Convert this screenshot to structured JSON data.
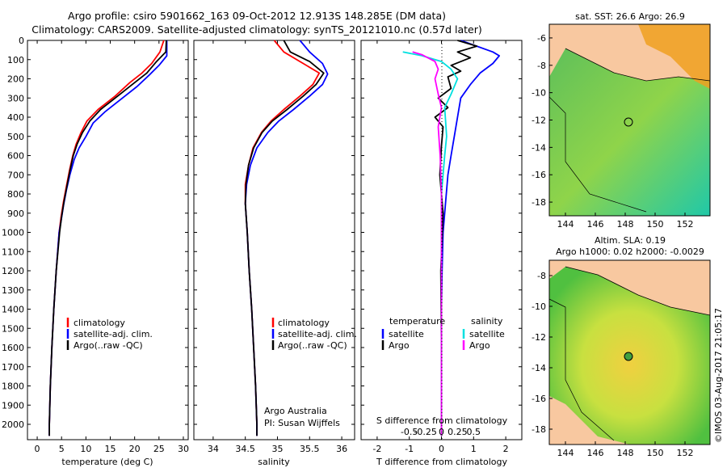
{
  "title": {
    "line1": "Argo profile: csiro 5901662_163 09-Oct-2012 12.913S 148.285E (DM data)",
    "line2": "Climatology: CARS2009. Satellite-adjusted climatology: synTS_20121010.nc (0.57d later)"
  },
  "colors": {
    "clim": "#ff0000",
    "sat": "#0000ff",
    "argo": "#000000",
    "sat_s": "#00e0e0",
    "argo_s": "#ff00ff"
  },
  "chart_data": [
    {
      "type": "line",
      "id": "temperature",
      "xlabel": "temperature (deg C)",
      "ylabel": "",
      "xlim": [
        -2,
        31
      ],
      "ylim": [
        2080,
        0
      ],
      "xticks": [
        0,
        5,
        10,
        15,
        20,
        25,
        30
      ],
      "yticks": [
        0,
        100,
        200,
        300,
        400,
        500,
        600,
        700,
        800,
        900,
        1000,
        1100,
        1200,
        1300,
        1400,
        1500,
        1600,
        1700,
        1800,
        1900,
        2000
      ],
      "legend": [
        "climatology",
        "satellite-adj. clim.",
        "Argo(..raw -QC)"
      ],
      "series": [
        {
          "name": "climatology",
          "color": "clim",
          "points": [
            [
              26.0,
              0
            ],
            [
              25.2,
              60
            ],
            [
              23.5,
              120
            ],
            [
              21.5,
              170
            ],
            [
              19.0,
              220
            ],
            [
              16.0,
              290
            ],
            [
              12.5,
              360
            ],
            [
              10.2,
              420
            ],
            [
              9.0,
              480
            ],
            [
              8.0,
              540
            ],
            [
              7.3,
              600
            ],
            [
              6.6,
              680
            ],
            [
              6.0,
              760
            ],
            [
              5.4,
              840
            ],
            [
              4.9,
              920
            ],
            [
              4.5,
              1000
            ],
            [
              3.9,
              1200
            ],
            [
              3.4,
              1400
            ],
            [
              3.0,
              1600
            ],
            [
              2.7,
              1800
            ],
            [
              2.5,
              2000
            ],
            [
              2.5,
              2060
            ]
          ]
        },
        {
          "name": "satellite-adj. clim.",
          "color": "sat",
          "points": [
            [
              26.6,
              0
            ],
            [
              26.6,
              80
            ],
            [
              25.0,
              130
            ],
            [
              23.0,
              180
            ],
            [
              20.5,
              240
            ],
            [
              17.5,
              300
            ],
            [
              14.0,
              370
            ],
            [
              11.5,
              430
            ],
            [
              10.0,
              500
            ],
            [
              8.6,
              560
            ],
            [
              7.6,
              620
            ],
            [
              6.7,
              700
            ],
            [
              6.0,
              780
            ],
            [
              5.4,
              860
            ],
            [
              4.9,
              940
            ],
            [
              4.5,
              1000
            ],
            [
              3.9,
              1200
            ],
            [
              3.4,
              1400
            ],
            [
              3.0,
              1600
            ],
            [
              2.7,
              1800
            ],
            [
              2.5,
              2000
            ],
            [
              2.5,
              2060
            ]
          ]
        },
        {
          "name": "Argo(..raw -QC)",
          "color": "argo",
          "points": [
            [
              26.5,
              0
            ],
            [
              26.4,
              60
            ],
            [
              24.5,
              110
            ],
            [
              22.5,
              170
            ],
            [
              19.5,
              230
            ],
            [
              16.5,
              290
            ],
            [
              13.0,
              360
            ],
            [
              10.8,
              420
            ],
            [
              9.3,
              480
            ],
            [
              8.2,
              540
            ],
            [
              7.4,
              600
            ],
            [
              6.7,
              680
            ],
            [
              6.1,
              760
            ],
            [
              5.5,
              840
            ],
            [
              5.0,
              920
            ],
            [
              4.6,
              1000
            ],
            [
              3.9,
              1200
            ],
            [
              3.4,
              1400
            ],
            [
              3.0,
              1600
            ],
            [
              2.7,
              1800
            ],
            [
              2.5,
              2000
            ],
            [
              2.5,
              2060
            ]
          ]
        }
      ]
    },
    {
      "type": "line",
      "id": "salinity",
      "xlabel": "salinity",
      "xlim": [
        33.7,
        36.2
      ],
      "ylim": [
        2080,
        0
      ],
      "xticks": [
        34,
        34.5,
        35,
        35.5,
        36
      ],
      "legend": [
        "climatology",
        "satellite-adj. clim.",
        "Argo(..raw -QC)"
      ],
      "annotations": [
        "Argo Australia",
        "PI: Susan Wijffels"
      ],
      "series": [
        {
          "name": "climatology",
          "color": "clim",
          "points": [
            [
              34.95,
              0
            ],
            [
              35.1,
              60
            ],
            [
              35.4,
              120
            ],
            [
              35.65,
              170
            ],
            [
              35.55,
              230
            ],
            [
              35.35,
              290
            ],
            [
              35.1,
              360
            ],
            [
              34.9,
              420
            ],
            [
              34.75,
              480
            ],
            [
              34.62,
              560
            ],
            [
              34.55,
              650
            ],
            [
              34.5,
              750
            ],
            [
              34.5,
              850
            ],
            [
              34.53,
              1000
            ],
            [
              34.56,
              1200
            ],
            [
              34.6,
              1400
            ],
            [
              34.63,
              1600
            ],
            [
              34.66,
              1800
            ],
            [
              34.68,
              2000
            ],
            [
              34.68,
              2060
            ]
          ]
        },
        {
          "name": "satellite-adj. clim.",
          "color": "sat",
          "points": [
            [
              35.35,
              0
            ],
            [
              35.5,
              60
            ],
            [
              35.7,
              120
            ],
            [
              35.78,
              175
            ],
            [
              35.7,
              230
            ],
            [
              35.5,
              290
            ],
            [
              35.25,
              360
            ],
            [
              35.02,
              420
            ],
            [
              34.85,
              480
            ],
            [
              34.68,
              560
            ],
            [
              34.58,
              650
            ],
            [
              34.52,
              750
            ],
            [
              34.5,
              850
            ],
            [
              34.53,
              1000
            ],
            [
              34.56,
              1200
            ],
            [
              34.6,
              1400
            ],
            [
              34.63,
              1600
            ],
            [
              34.66,
              1800
            ],
            [
              34.68,
              2000
            ],
            [
              34.68,
              2060
            ]
          ]
        },
        {
          "name": "Argo(..raw -QC)",
          "color": "argo",
          "points": [
            [
              35.1,
              0
            ],
            [
              35.2,
              60
            ],
            [
              35.5,
              110
            ],
            [
              35.72,
              170
            ],
            [
              35.6,
              230
            ],
            [
              35.4,
              290
            ],
            [
              35.15,
              360
            ],
            [
              34.92,
              420
            ],
            [
              34.76,
              480
            ],
            [
              34.63,
              560
            ],
            [
              34.55,
              650
            ],
            [
              34.51,
              750
            ],
            [
              34.5,
              850
            ],
            [
              34.53,
              1000
            ],
            [
              34.56,
              1200
            ],
            [
              34.6,
              1400
            ],
            [
              34.63,
              1600
            ],
            [
              34.66,
              1800
            ],
            [
              34.68,
              2000
            ],
            [
              34.68,
              2060
            ]
          ]
        }
      ]
    },
    {
      "type": "line",
      "id": "difference",
      "xlabel": "T difference from climatology",
      "xlabel_top": "S difference from climatology",
      "xlim": [
        -2.5,
        2.5
      ],
      "ylim": [
        2080,
        0
      ],
      "xticks": [
        -2,
        -1,
        0,
        1,
        2
      ],
      "sticks": [
        -0.5,
        -0.25,
        0,
        0.25,
        0.5
      ],
      "legend_headers": [
        "temperature",
        "salinity"
      ],
      "legend_t": [
        "satellite",
        "Argo"
      ],
      "legend_s": [
        "satellite",
        "Argo"
      ],
      "series": [
        {
          "name": "T satellite",
          "color": "sat",
          "points": [
            [
              0.6,
              0
            ],
            [
              1.6,
              60
            ],
            [
              1.8,
              80
            ],
            [
              1.6,
              120
            ],
            [
              1.2,
              170
            ],
            [
              0.9,
              230
            ],
            [
              0.6,
              300
            ],
            [
              0.5,
              400
            ],
            [
              0.4,
              500
            ],
            [
              0.3,
              600
            ],
            [
              0.2,
              700
            ],
            [
              0.15,
              800
            ],
            [
              0.1,
              900
            ],
            [
              0.05,
              1000
            ],
            [
              0.02,
              1200
            ],
            [
              0,
              1400
            ],
            [
              0,
              1600
            ],
            [
              0,
              1800
            ],
            [
              0,
              2060
            ]
          ]
        },
        {
          "name": "T Argo",
          "color": "argo",
          "points": [
            [
              0.5,
              0
            ],
            [
              1.1,
              30
            ],
            [
              0.5,
              60
            ],
            [
              0.9,
              90
            ],
            [
              0.3,
              130
            ],
            [
              0.6,
              160
            ],
            [
              0.2,
              190
            ],
            [
              0.3,
              250
            ],
            [
              -0.1,
              300
            ],
            [
              0.2,
              350
            ],
            [
              -0.2,
              400
            ],
            [
              0.05,
              450
            ],
            [
              0.0,
              550
            ],
            [
              -0.05,
              700
            ],
            [
              0.05,
              900
            ],
            [
              -0.02,
              1200
            ],
            [
              0,
              1600
            ],
            [
              0,
              2060
            ]
          ]
        },
        {
          "name": "S satellite",
          "color": "sat_s",
          "points": [
            [
              -0.6,
              60
            ],
            [
              -0.3,
              80
            ],
            [
              0.0,
              110
            ],
            [
              0.15,
              150
            ],
            [
              0.25,
              200
            ],
            [
              0.15,
              280
            ],
            [
              0.05,
              350
            ],
            [
              0.08,
              500
            ],
            [
              0.05,
              600
            ],
            [
              0.0,
              800
            ],
            [
              0.0,
              1000
            ],
            [
              0,
              1400
            ],
            [
              0,
              2060
            ]
          ]
        },
        {
          "name": "S Argo",
          "color": "argo_s",
          "points": [
            [
              -0.45,
              60
            ],
            [
              -0.3,
              75
            ],
            [
              -0.1,
              110
            ],
            [
              -0.05,
              150
            ],
            [
              -0.1,
              200
            ],
            [
              -0.05,
              280
            ],
            [
              0.0,
              350
            ],
            [
              -0.05,
              450
            ],
            [
              -0.02,
              600
            ],
            [
              0.0,
              800
            ],
            [
              0,
              1200
            ],
            [
              0,
              2060
            ]
          ]
        }
      ]
    }
  ],
  "depth_ticks": [
    "0",
    "100",
    "200",
    "300",
    "400",
    "500",
    "600",
    "700",
    "800",
    "900",
    "1000",
    "1100",
    "1200",
    "1300",
    "1400",
    "1500",
    "1600",
    "1700",
    "1800",
    "1900",
    "2000"
  ],
  "temp_ticks": [
    "0",
    "5",
    "10",
    "15",
    "20",
    "25",
    "30"
  ],
  "sal_ticks": [
    "34",
    "34.5",
    "35",
    "35.5",
    "36"
  ],
  "tdiff_ticks": [
    "-2",
    "-1",
    "0",
    "1",
    "2"
  ],
  "sdiff_ticks": [
    "-0.5",
    "-0.25",
    "0",
    "0.25",
    "0.5"
  ],
  "map_top": {
    "title": "sat. SST: 26.6  Argo: 26.9",
    "lat_ticks": [
      "-6",
      "-8",
      "-10",
      "-12",
      "-14",
      "-16",
      "-18"
    ],
    "lon_ticks": [
      "144",
      "146",
      "148",
      "150",
      "152"
    ]
  },
  "map_bottom": {
    "title1": "Altim. SLA: 0.19",
    "title2": "Argo h1000: 0.02  h2000: -0.0029",
    "lat_ticks": [
      "-8",
      "-10",
      "-12",
      "-14",
      "-16",
      "-18"
    ],
    "lon_ticks": [
      "144",
      "146",
      "148",
      "150",
      "152"
    ]
  },
  "credit": "©IMOS 03-Aug-2017 21:05:17"
}
